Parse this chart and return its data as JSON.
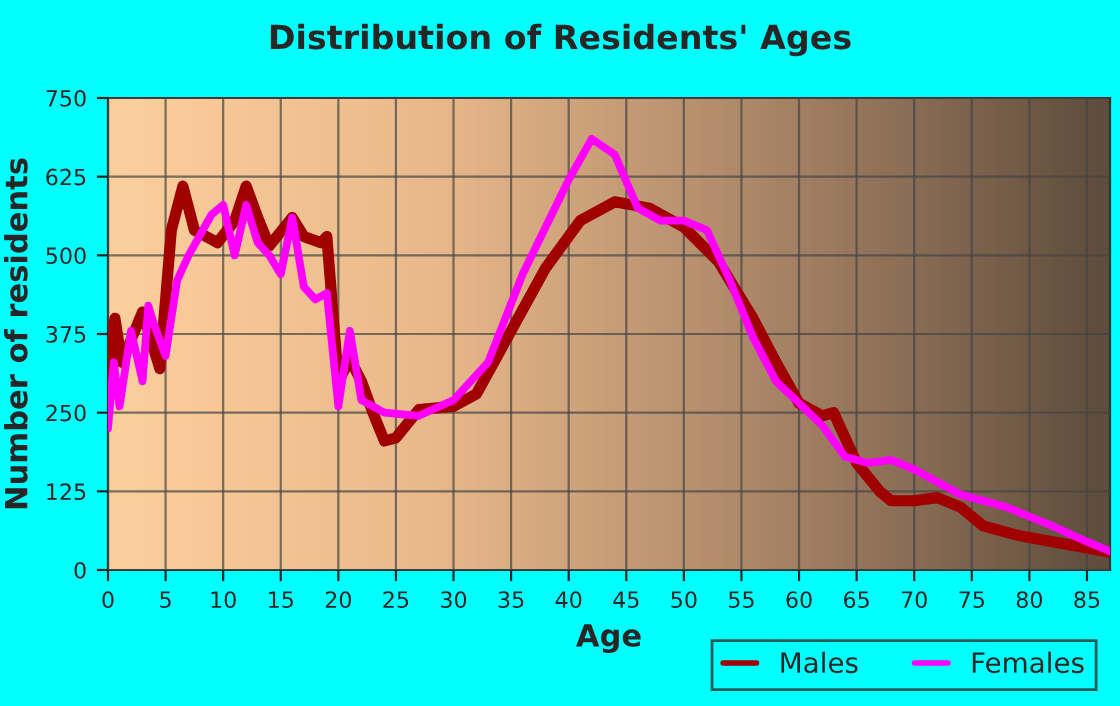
{
  "chart_data": {
    "type": "line",
    "title": "Distribution of Residents' Ages",
    "xlabel": "Age",
    "ylabel": "Number of residents",
    "xlim": [
      0,
      87
    ],
    "xticks": [
      0,
      5,
      10,
      15,
      20,
      25,
      30,
      35,
      40,
      45,
      50,
      55,
      60,
      65,
      70,
      75,
      80,
      85
    ],
    "ylim": [
      0,
      750
    ],
    "yticks": [
      0,
      125,
      250,
      375,
      500,
      625,
      750
    ],
    "grid": true,
    "legend": "bottom right",
    "marker": "none",
    "line_style": "solid",
    "series": [
      {
        "name": "Males",
        "color": "#a00000",
        "x": [
          0,
          0.6,
          1.2,
          3,
          4.5,
          5.5,
          6.5,
          7.5,
          8.5,
          9.5,
          11,
          12,
          13,
          14,
          16,
          17,
          18.5,
          19,
          20,
          21,
          22,
          23,
          24,
          25,
          27,
          30,
          32,
          35,
          38,
          41,
          44,
          47,
          50,
          53,
          56,
          58,
          60,
          62,
          63,
          65,
          67,
          68,
          70,
          72,
          74,
          76,
          79,
          82,
          85,
          87
        ],
        "values": [
          310,
          400,
          330,
          410,
          320,
          540,
          610,
          540,
          530,
          520,
          555,
          610,
          560,
          515,
          560,
          530,
          520,
          530,
          300,
          335,
          300,
          250,
          205,
          210,
          255,
          260,
          280,
          380,
          480,
          555,
          585,
          575,
          545,
          490,
          400,
          330,
          265,
          245,
          250,
          170,
          125,
          110,
          110,
          115,
          100,
          70,
          55,
          45,
          35,
          28
        ]
      },
      {
        "name": "Females",
        "color": "#ff00ff",
        "x": [
          0,
          0.5,
          1,
          2,
          3,
          3.5,
          4,
          5,
          6,
          7,
          9,
          10,
          11,
          12,
          13,
          14,
          15,
          16,
          17,
          18,
          19,
          20,
          21,
          22,
          24,
          27,
          30,
          33,
          36,
          40,
          42,
          44,
          46,
          48,
          50,
          52,
          54,
          56,
          58,
          60,
          62,
          64,
          66,
          68,
          70,
          72,
          74,
          76,
          78,
          80,
          82,
          85,
          87
        ],
        "values": [
          225,
          330,
          260,
          380,
          300,
          420,
          390,
          340,
          460,
          500,
          565,
          580,
          500,
          580,
          520,
          500,
          470,
          560,
          450,
          430,
          440,
          260,
          380,
          270,
          250,
          245,
          270,
          330,
          470,
          620,
          685,
          660,
          575,
          555,
          555,
          540,
          460,
          370,
          300,
          265,
          230,
          180,
          170,
          175,
          160,
          140,
          120,
          110,
          100,
          85,
          70,
          45,
          30
        ]
      }
    ]
  }
}
